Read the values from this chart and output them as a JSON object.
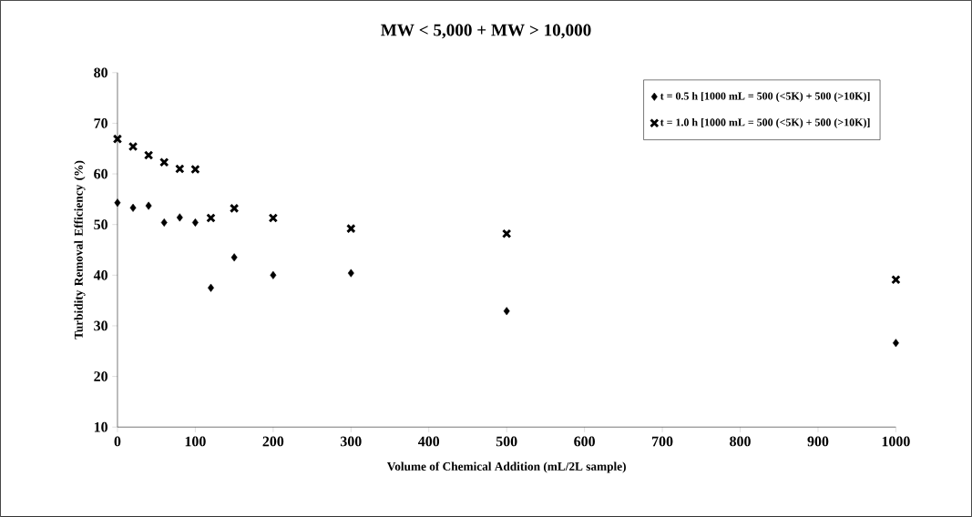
{
  "chart_data": {
    "type": "scatter",
    "title": "MW < 5,000 + MW > 10,000",
    "xlabel": "Volume of Chemical Addition (mL/2L sample)",
    "ylabel": "Turbidity Removal Efficiency (%)",
    "x": [
      0,
      20,
      40,
      60,
      80,
      100,
      120,
      150,
      200,
      300,
      500,
      1000
    ],
    "series": [
      {
        "name": "t = 0.5 h [1000 mL = 500 (<5K) + 500 (>10K)]",
        "color": "#000000",
        "marker": "diamond",
        "values": [
          54.3,
          53.3,
          53.7,
          50.4,
          51.4,
          50.4,
          37.5,
          43.5,
          40.0,
          40.4,
          32.9,
          26.6
        ]
      },
      {
        "name": "t = 1.0 h [1000 mL = 500 (<5K) + 500 (>10K)]",
        "color": "#000000",
        "marker": "cross",
        "values": [
          66.9,
          65.4,
          63.7,
          62.3,
          61.0,
          60.9,
          51.3,
          53.2,
          51.3,
          49.2,
          48.2,
          39.1
        ]
      }
    ],
    "xlim": [
      0,
      1000
    ],
    "ylim": [
      10,
      80
    ],
    "xticks": [
      0,
      100,
      200,
      300,
      400,
      500,
      600,
      700,
      800,
      900,
      1000
    ],
    "yticks": [
      10,
      20,
      30,
      40,
      50,
      60,
      70,
      80
    ],
    "grid": false,
    "legend": "top right"
  }
}
